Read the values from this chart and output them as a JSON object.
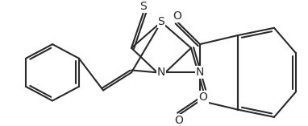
{
  "bg_color": "#ffffff",
  "line_color": "#2a2a2a",
  "lw": 1.5,
  "figsize": [
    3.82,
    1.57
  ],
  "dpi": 100,
  "xlim": [
    0,
    382
  ],
  "ylim": [
    0,
    157
  ]
}
